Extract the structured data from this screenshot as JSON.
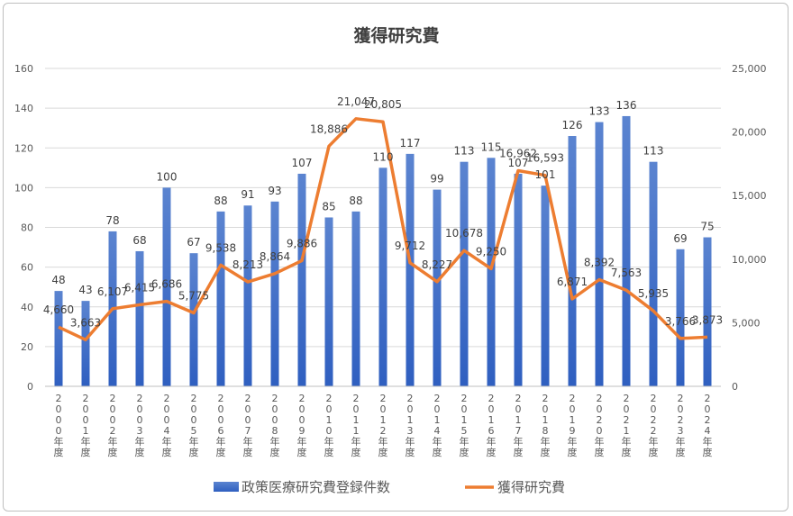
{
  "chart_data": {
    "type": "bar+line",
    "title": "獲得研究費",
    "categories": [
      "2000年度",
      "2001年度",
      "2002年度",
      "2003年度",
      "2004年度",
      "2005年度",
      "2006年度",
      "2007年度",
      "2008年度",
      "2009年度",
      "2010年度",
      "2011年度",
      "2012年度",
      "2013年度",
      "2014年度",
      "2015年度",
      "2016年度",
      "2017年度",
      "2018年度",
      "2019年度",
      "2020年度",
      "2021年度",
      "2022年度",
      "2023年度",
      "2024年度"
    ],
    "series": [
      {
        "name": "政策医療研究費登録件数",
        "type": "bar",
        "axis": "left",
        "color": "#4472c4",
        "values": [
          48,
          43,
          78,
          68,
          100,
          67,
          88,
          91,
          93,
          107,
          85,
          88,
          110,
          117,
          99,
          113,
          115,
          107,
          101,
          126,
          133,
          136,
          113,
          69,
          75
        ],
        "labels": [
          "48",
          "43",
          "78",
          "68",
          "100",
          "67",
          "88",
          "91",
          "93",
          "107",
          "85",
          "88",
          "110",
          "117",
          "99",
          "113",
          "115",
          "107",
          "101",
          "126",
          "133",
          "136",
          "113",
          "69",
          "75"
        ]
      },
      {
        "name": "獲得研究費",
        "type": "line",
        "axis": "right",
        "color": "#ed7d31",
        "values": [
          4660,
          3663,
          6107,
          6415,
          6686,
          5775,
          9538,
          8213,
          8864,
          9886,
          18886,
          21047,
          20805,
          9712,
          8227,
          10678,
          9250,
          16962,
          16593,
          6871,
          8392,
          7563,
          5935,
          3766,
          3873
        ],
        "labels": [
          "4,660",
          "3,663",
          "6,107",
          "6,415",
          "6,686",
          "5,775",
          "9,538",
          "8,213",
          "8,864",
          "9,886",
          "18,886",
          "21,047",
          "20,805",
          "9,712",
          "8,227",
          "10,678",
          "9,250",
          "16,962",
          "16,593",
          "6,871",
          "8,392",
          "7,563",
          "5,935",
          "3,766",
          "3,873"
        ]
      }
    ],
    "y_left": {
      "min": 0,
      "max": 160,
      "ticks": [
        "0",
        "20",
        "40",
        "60",
        "80",
        "100",
        "120",
        "140",
        "160"
      ]
    },
    "y_right": {
      "min": 0,
      "max": 25000,
      "ticks": [
        "0",
        "5,000",
        "10,000",
        "15,000",
        "20,000",
        "25,000"
      ]
    },
    "grid": true,
    "legend": "bottom"
  }
}
